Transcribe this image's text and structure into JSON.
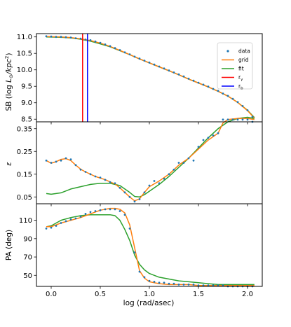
{
  "chart_data": {
    "type": "line",
    "xlabel": "log (rad/asec)",
    "xlim": [
      -0.15,
      2.15
    ],
    "x_ticks": [
      0.0,
      0.5,
      1.0,
      1.5,
      2.0
    ],
    "x_tick_labels": [
      "0.0",
      "0.5",
      "1.0",
      "1.5",
      "2.0"
    ],
    "colors": {
      "data": "#1f77b4",
      "grid": "#ff7f0e",
      "fit": "#2ca02c",
      "r_gamma": "#ff0000",
      "r_b": "#0000ff"
    },
    "legend": {
      "placement": "top-right",
      "entries": [
        {
          "key": "data",
          "label": "data",
          "marker": "dot"
        },
        {
          "key": "grid",
          "label": "grid",
          "marker": "line"
        },
        {
          "key": "fit",
          "label": "fit",
          "marker": "line"
        },
        {
          "key": "r_gamma",
          "label": "r",
          "sub": "γ",
          "marker": "line"
        },
        {
          "key": "r_b",
          "label": "r",
          "sub": "b",
          "marker": "line"
        }
      ]
    },
    "panels": [
      {
        "id": "sb",
        "ylabel_main": "SB (log ",
        "ylabel_math": "L",
        "ylabel_sub": "⊙",
        "ylabel_rest": "/kpc",
        "ylabel_sup": "2",
        "ylabel_end": ")",
        "ylim": [
          8.42,
          11.1
        ],
        "y_ticks": [
          8.5,
          9.0,
          9.5,
          10.0,
          10.5,
          11.0
        ],
        "y_tick_labels": [
          "8.5",
          "9.0",
          "9.5",
          "10.0",
          "10.5",
          "11.0"
        ],
        "vlines": {
          "r_gamma": 0.32,
          "r_b": 0.37
        },
        "series": [
          {
            "key": "data",
            "type": "scatter",
            "x": [
              -0.05,
              0.0,
              0.05,
              0.1,
              0.15,
              0.2,
              0.25,
              0.3,
              0.35,
              0.4,
              0.45,
              0.5,
              0.55,
              0.6,
              0.65,
              0.7,
              0.75,
              0.8,
              0.85,
              0.9,
              0.95,
              1.0,
              1.05,
              1.1,
              1.15,
              1.2,
              1.25,
              1.3,
              1.35,
              1.4,
              1.45,
              1.5,
              1.55,
              1.6,
              1.65,
              1.7,
              1.75,
              1.8,
              1.85,
              1.9,
              1.95,
              2.0,
              2.05
            ],
            "y": [
              11.02,
              11.01,
              11.0,
              11.0,
              10.99,
              10.98,
              10.96,
              10.95,
              10.92,
              10.9,
              10.86,
              10.82,
              10.77,
              10.72,
              10.66,
              10.6,
              10.53,
              10.47,
              10.4,
              10.34,
              10.28,
              10.22,
              10.16,
              10.1,
              10.04,
              9.98,
              9.92,
              9.86,
              9.8,
              9.73,
              9.67,
              9.61,
              9.55,
              9.49,
              9.42,
              9.36,
              9.28,
              9.21,
              9.12,
              9.02,
              8.9,
              8.77,
              8.57
            ]
          },
          {
            "key": "grid",
            "type": "line",
            "x": [
              -0.05,
              0.1,
              0.2,
              0.3,
              0.4,
              0.5,
              0.6,
              0.7,
              0.8,
              0.9,
              1.0,
              1.1,
              1.2,
              1.3,
              1.4,
              1.5,
              1.6,
              1.7,
              1.8,
              1.9,
              2.0,
              2.07
            ],
            "y": [
              11.01,
              11.0,
              10.98,
              10.94,
              10.89,
              10.81,
              10.71,
              10.59,
              10.46,
              10.33,
              10.21,
              10.09,
              9.97,
              9.85,
              9.72,
              9.6,
              9.48,
              9.35,
              9.2,
              9.01,
              8.76,
              8.53
            ]
          },
          {
            "key": "fit",
            "type": "line",
            "x": [
              -0.05,
              0.1,
              0.2,
              0.3,
              0.4,
              0.5,
              0.6,
              0.7,
              0.8,
              0.9,
              1.0,
              1.1,
              1.2,
              1.3,
              1.4,
              1.5,
              1.6,
              1.7,
              1.8,
              1.9,
              2.0,
              2.07
            ],
            "y": [
              11.0,
              10.99,
              10.97,
              10.93,
              10.87,
              10.79,
              10.7,
              10.58,
              10.46,
              10.33,
              10.21,
              10.09,
              9.97,
              9.85,
              9.72,
              9.6,
              9.48,
              9.35,
              9.2,
              9.01,
              8.77,
              8.55
            ]
          }
        ]
      },
      {
        "id": "ellipticity",
        "ylabel": "ε",
        "ylim": [
          0.02,
          0.38
        ],
        "y_ticks": [
          0.05,
          0.15,
          0.25,
          0.35
        ],
        "y_tick_labels": [
          "0.05",
          "0.15",
          "0.25",
          "0.35"
        ],
        "series": [
          {
            "key": "data",
            "type": "scatter",
            "x": [
              -0.05,
              0.0,
              0.05,
              0.1,
              0.15,
              0.2,
              0.25,
              0.3,
              0.35,
              0.4,
              0.45,
              0.5,
              0.55,
              0.6,
              0.65,
              0.7,
              0.75,
              0.8,
              0.85,
              0.9,
              0.95,
              1.0,
              1.05,
              1.1,
              1.15,
              1.2,
              1.25,
              1.3,
              1.35,
              1.4,
              1.45,
              1.5,
              1.55,
              1.6,
              1.65,
              1.7,
              1.75,
              1.8,
              1.85,
              1.9,
              1.95,
              2.0,
              2.05
            ],
            "y": [
              0.21,
              0.2,
              0.205,
              0.21,
              0.22,
              0.215,
              0.19,
              0.17,
              0.16,
              0.15,
              0.14,
              0.135,
              0.125,
              0.115,
              0.11,
              0.09,
              0.07,
              0.05,
              0.03,
              0.04,
              0.07,
              0.1,
              0.12,
              0.11,
              0.13,
              0.15,
              0.17,
              0.2,
              0.2,
              0.22,
              0.21,
              0.27,
              0.3,
              0.31,
              0.32,
              0.33,
              0.39,
              0.39,
              0.39,
              0.39,
              0.39,
              0.39,
              0.38
            ]
          },
          {
            "key": "grid",
            "type": "line",
            "x": [
              -0.05,
              0.0,
              0.05,
              0.1,
              0.15,
              0.2,
              0.25,
              0.3,
              0.35,
              0.4,
              0.45,
              0.5,
              0.55,
              0.6,
              0.65,
              0.7,
              0.75,
              0.8,
              0.85,
              0.9,
              0.95,
              1.0,
              1.1,
              1.2,
              1.3,
              1.4,
              1.5,
              1.6,
              1.7,
              1.75,
              1.8,
              1.9,
              2.0,
              2.07
            ],
            "y": [
              0.21,
              0.198,
              0.205,
              0.215,
              0.218,
              0.21,
              0.19,
              0.172,
              0.16,
              0.15,
              0.14,
              0.133,
              0.126,
              0.116,
              0.107,
              0.09,
              0.07,
              0.05,
              0.033,
              0.042,
              0.07,
              0.095,
              0.12,
              0.15,
              0.19,
              0.22,
              0.26,
              0.3,
              0.33,
              0.375,
              0.39,
              0.395,
              0.395,
              0.39
            ]
          },
          {
            "key": "fit",
            "type": "line",
            "x": [
              -0.05,
              0.0,
              0.1,
              0.2,
              0.3,
              0.4,
              0.5,
              0.6,
              0.7,
              0.8,
              0.85,
              0.9,
              0.95,
              1.0,
              1.1,
              1.2,
              1.3,
              1.4,
              1.5,
              1.6,
              1.7,
              1.8,
              1.9,
              2.0,
              2.07
            ],
            "y": [
              0.065,
              0.062,
              0.068,
              0.085,
              0.095,
              0.105,
              0.11,
              0.11,
              0.1,
              0.07,
              0.052,
              0.05,
              0.06,
              0.075,
              0.105,
              0.14,
              0.18,
              0.22,
              0.265,
              0.31,
              0.35,
              0.38,
              0.395,
              0.4,
              0.395
            ]
          }
        ]
      },
      {
        "id": "pa",
        "ylabel": "PA (deg)",
        "ylim": [
          38,
          128
        ],
        "y_ticks": [
          50,
          70,
          90,
          110
        ],
        "y_tick_labels": [
          "50",
          "70",
          "90",
          "110"
        ],
        "series": [
          {
            "key": "data",
            "type": "scatter",
            "x": [
              -0.05,
              0.0,
              0.05,
              0.1,
              0.15,
              0.2,
              0.25,
              0.3,
              0.35,
              0.4,
              0.45,
              0.5,
              0.55,
              0.6,
              0.65,
              0.7,
              0.75,
              0.8,
              0.85,
              0.9,
              0.95,
              1.0,
              1.05,
              1.1,
              1.15,
              1.2,
              1.25,
              1.3,
              1.35,
              1.4,
              1.45,
              1.5,
              1.55,
              1.6,
              1.65,
              1.7,
              1.75,
              1.8,
              1.85,
              1.9,
              1.95,
              2.0,
              2.05
            ],
            "y": [
              101,
              102,
              104,
              107,
              109,
              111,
              112,
              114,
              117,
              119,
              120,
              121,
              122,
              122,
              122,
              120,
              116,
              101,
              75,
              54,
              48,
              44,
              43,
              42,
              42,
              41,
              41,
              40,
              40,
              40,
              40,
              39,
              39,
              39,
              39,
              39,
              39,
              38,
              38,
              38,
              38,
              38,
              38
            ]
          },
          {
            "key": "grid",
            "type": "line",
            "x": [
              -0.05,
              0.0,
              0.1,
              0.2,
              0.3,
              0.4,
              0.5,
              0.6,
              0.65,
              0.7,
              0.75,
              0.8,
              0.85,
              0.9,
              0.95,
              1.0,
              1.1,
              1.2,
              1.3,
              1.4,
              1.5,
              1.6,
              1.7,
              1.8,
              1.9,
              2.0,
              2.07
            ],
            "y": [
              103,
              103,
              107,
              110,
              113,
              117,
              121,
              123,
              123,
              122,
              118,
              105,
              80,
              55,
              47,
              43,
              41,
              40,
              40,
              40,
              39,
              39,
              39,
              39,
              39,
              39,
              39
            ]
          },
          {
            "key": "fit",
            "type": "line",
            "x": [
              -0.05,
              0.0,
              0.1,
              0.2,
              0.3,
              0.4,
              0.5,
              0.6,
              0.65,
              0.7,
              0.75,
              0.8,
              0.85,
              0.9,
              0.95,
              1.0,
              1.1,
              1.2,
              1.3,
              1.4,
              1.5,
              1.6,
              1.7,
              1.8,
              1.9,
              2.0,
              2.07
            ],
            "y": [
              103,
              104,
              110,
              113,
              115,
              116,
              116,
              116,
              115,
              110,
              100,
              88,
              72,
              62,
              56,
              52,
              48,
              46,
              44,
              43,
              42,
              41,
              40,
              40,
              40,
              40,
              40
            ]
          }
        ]
      }
    ]
  }
}
